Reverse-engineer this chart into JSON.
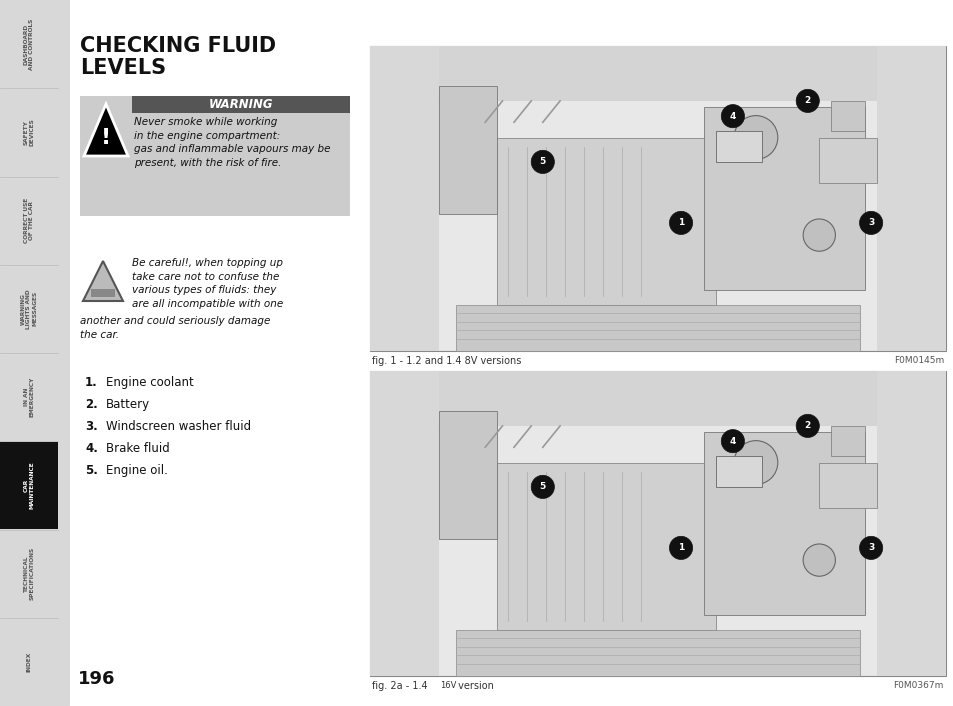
{
  "page_bg": "#ffffff",
  "sidebar_bg": "#d8d8d8",
  "sidebar_active_bg": "#111111",
  "sidebar_active_text": "#ffffff",
  "sidebar_inactive_text": "#555555",
  "sidebar_labels": [
    "DASHBOARD\nAND CONTROLS",
    "SAFETY\nDEVICES",
    "CORRECT USE\nOF THE CAR",
    "WARNING\nLIGHTS AND\nMESSAGES",
    "IN AN\nEMERGENCY",
    "CAR\nMAINTENANCE",
    "TECHNICAL\nSPECIFICATIONS",
    "INDEX"
  ],
  "active_sidebar_index": 5,
  "title_line1": "CHECKING FLUID",
  "title_line2": "LEVELS",
  "warning_header": "WARNING",
  "warning_text": "Never smoke while working\nin the engine compartment:\ngas and inflammable vapours may be\npresent, with the risk of fire.",
  "caution_text_right": "Be careful!, when topping up\ntake care not to confuse the\nvarious types of fluids: they\nare all incompatible with one",
  "caution_text_left": "another and could seriously damage\nthe car.",
  "list_items": [
    {
      "num": "1.",
      "text": "Engine coolant"
    },
    {
      "num": "2.",
      "text": "Battery"
    },
    {
      "num": "3.",
      "text": "Windscreen washer fluid"
    },
    {
      "num": "4.",
      "text": "Brake fluid"
    },
    {
      "num": "5.",
      "text": "Engine oil."
    }
  ],
  "fig1_caption": "fig. 1 - 1.2 and 1.4 8V versions",
  "fig1_code": "F0M0145m",
  "fig2_caption": "fig. 2a - 1.4 ",
  "fig2_caption2": "16V",
  "fig2_caption3": " version",
  "fig2_code": "F0M0367m",
  "page_number": "196"
}
